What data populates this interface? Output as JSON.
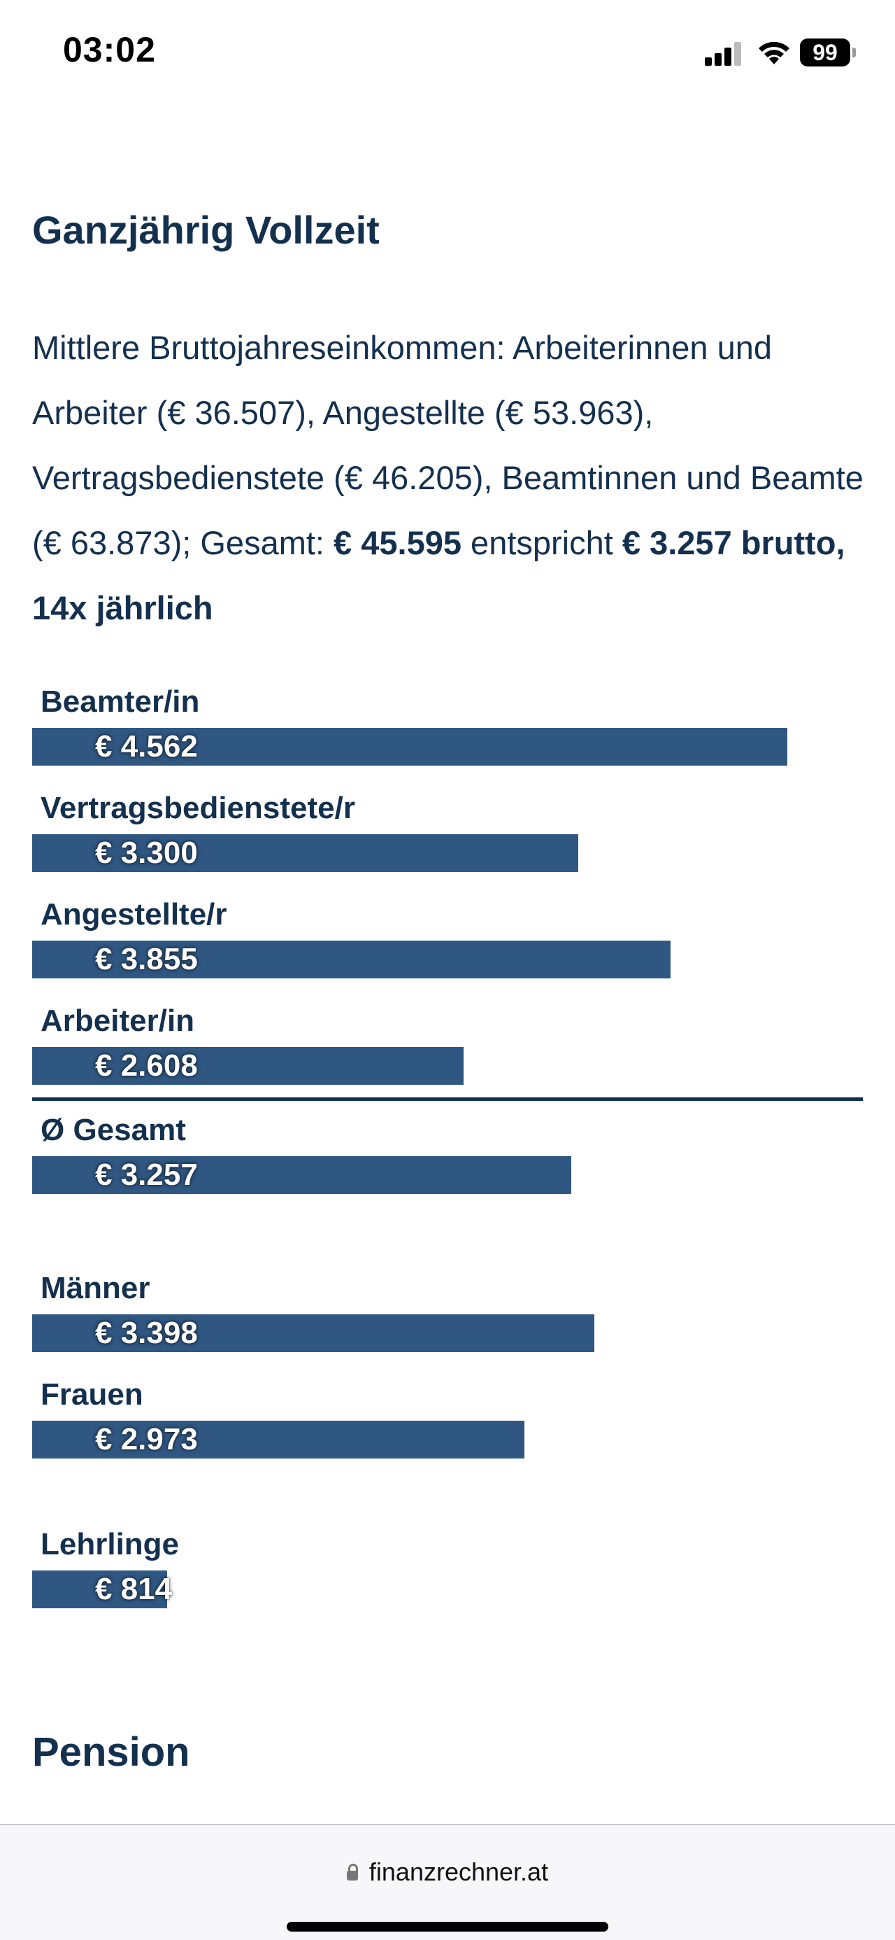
{
  "status_bar": {
    "time": "03:02",
    "battery": "99"
  },
  "section_title": "Ganzjährig Vollzeit",
  "intro": {
    "text": "Mittlere Bruttojahreseinkommen: Arbeiterinnen und Arbeiter (€ 36.507), Angestellte (€ 53.963), Vertragsbedienstete (€ 46.205), Beamtinnen und Beamte (€ 63.873); Gesamt: ",
    "total_bold": "€ 45.595",
    "mid": " entspricht ",
    "monthly_bold": "€ 3.257 brutto, 14x jährlich"
  },
  "chart_data": {
    "type": "bar",
    "orientation": "horizontal",
    "unit": "€",
    "categories": [
      "Beamter/in",
      "Vertragsbedienstete/r",
      "Angestellte/r",
      "Arbeiter/in",
      "Ø Gesamt",
      "Männer",
      "Frauen",
      "Lehrlinge"
    ],
    "values": [
      4562,
      3300,
      3855,
      2608,
      3257,
      3398,
      2973,
      814
    ],
    "value_labels": [
      "€ 4.562",
      "€ 3.300",
      "€ 3.855",
      "€ 2.608",
      "€ 3.257",
      "€ 3.398",
      "€ 2.973",
      "€ 814"
    ],
    "bar_color": "#2f5782"
  },
  "next_section_title": "Pension",
  "browser": {
    "url": "finanzrechner.at"
  }
}
